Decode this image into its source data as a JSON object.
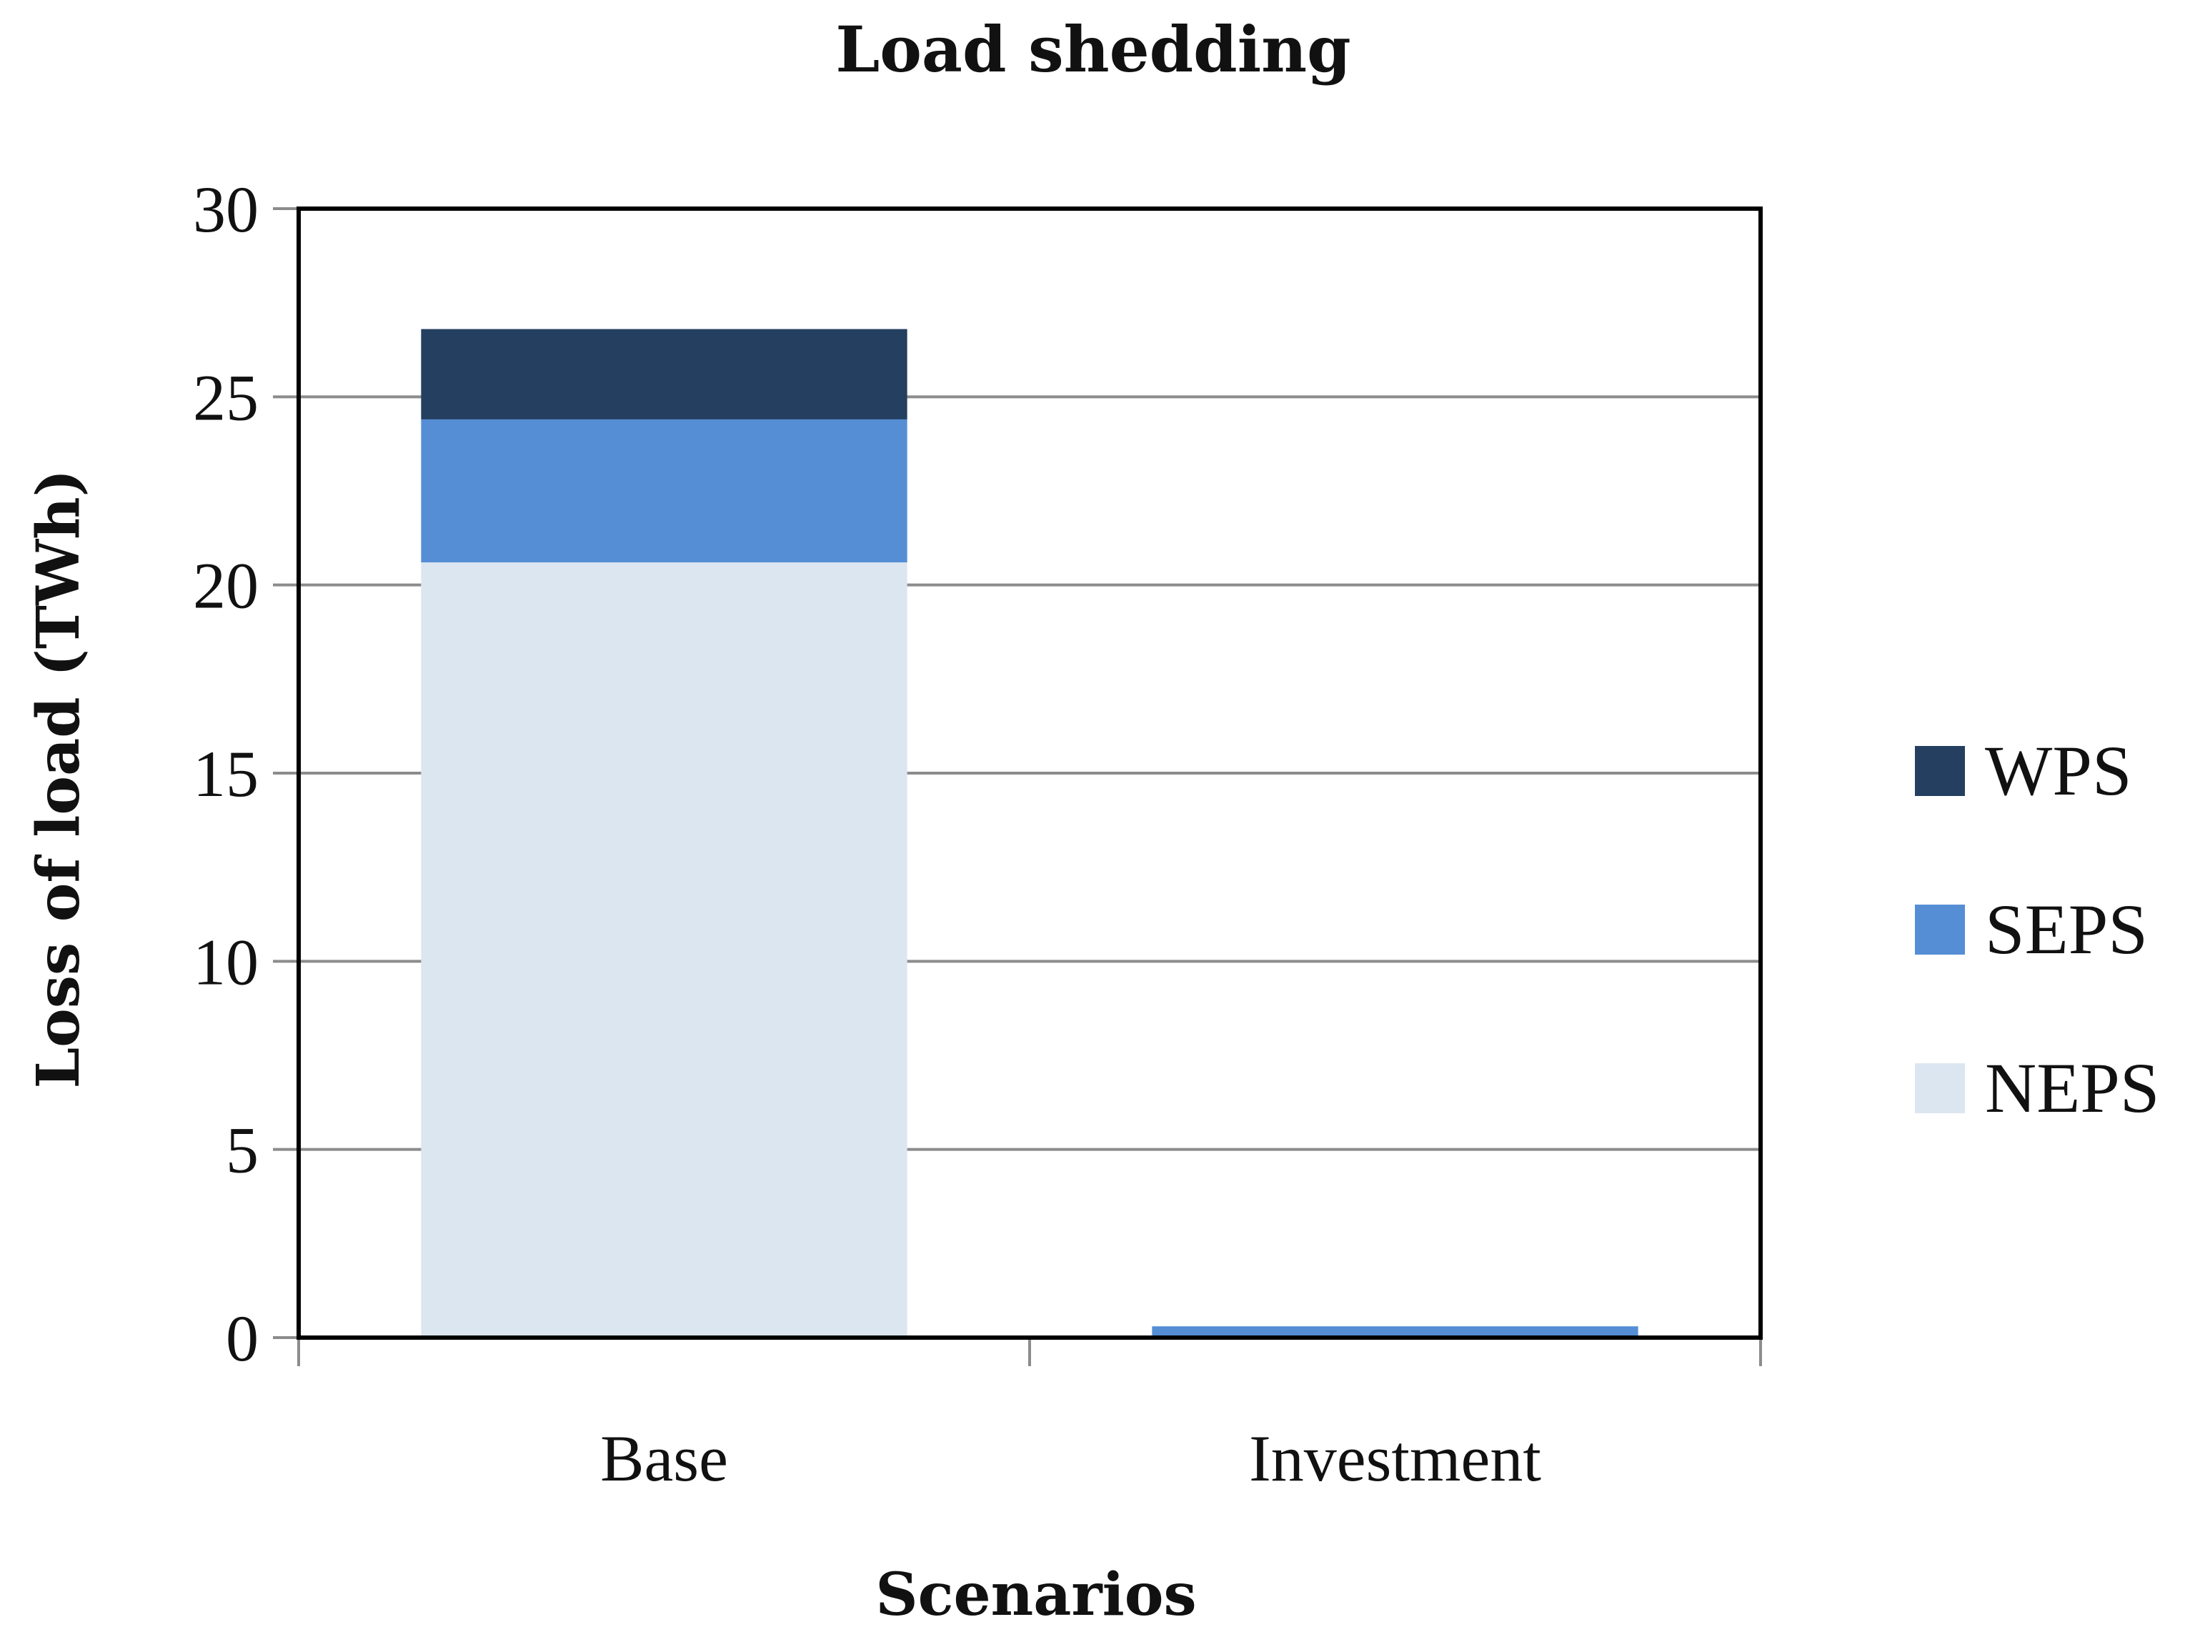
{
  "chart_data": {
    "type": "bar",
    "stacked": true,
    "title": "Load shedding",
    "xlabel": "Scenarios",
    "ylabel": "Loss of load (TWh)",
    "categories": [
      "Base",
      "Investment"
    ],
    "series": [
      {
        "name": "NEPS",
        "values": [
          20.6,
          0.0
        ],
        "color": "#dce6f1"
      },
      {
        "name": "SEPS",
        "values": [
          3.8,
          0.3
        ],
        "color": "#558ed5"
      },
      {
        "name": "WPS",
        "values": [
          2.4,
          0.0
        ],
        "color": "#243f60"
      }
    ],
    "legend_order": [
      "WPS",
      "SEPS",
      "NEPS"
    ],
    "ylim": [
      0,
      30
    ],
    "yticks": [
      0,
      5,
      10,
      15,
      20,
      25,
      30
    ],
    "grid": true,
    "legend_position": "right"
  }
}
